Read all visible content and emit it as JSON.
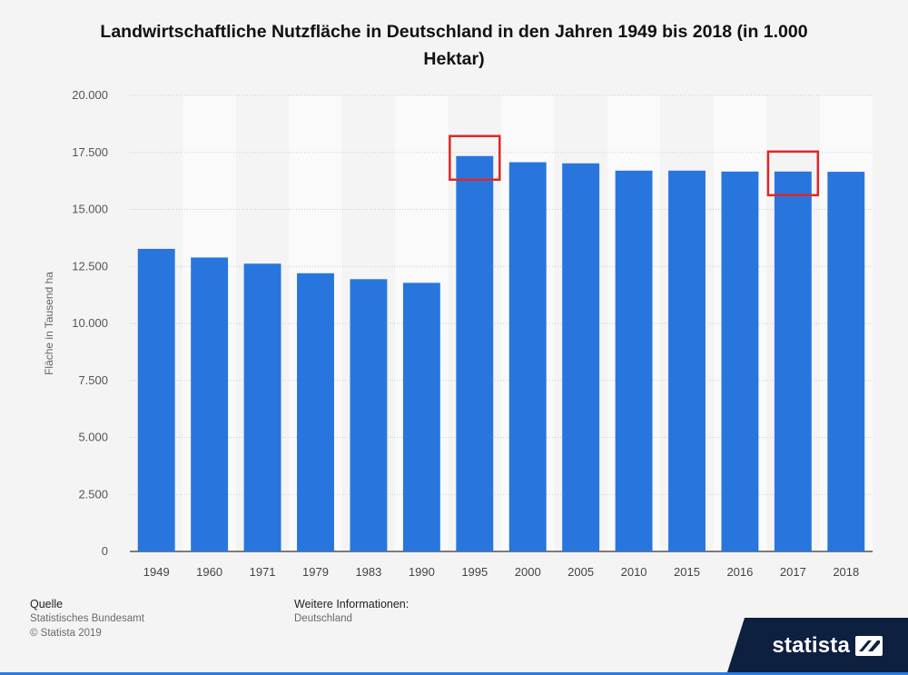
{
  "chart_data": {
    "type": "bar",
    "title": "Landwirtschaftliche Nutzfläche in Deutschland in den Jahren 1949 bis 2018 (in 1.000 Hektar)",
    "xlabel": "",
    "ylabel": "Fläche in Tausend ha",
    "ylim": [
      0,
      20000
    ],
    "yticks": [
      0,
      2500,
      5000,
      7500,
      10000,
      12500,
      15000,
      17500,
      20000
    ],
    "ytick_labels": [
      "0",
      "2.500",
      "5.000",
      "7.500",
      "10.000",
      "12.500",
      "15.000",
      "17.500",
      "20.000"
    ],
    "categories": [
      "1949",
      "1960",
      "1971",
      "1979",
      "1983",
      "1990",
      "1995",
      "2000",
      "2005",
      "2010",
      "2015",
      "2016",
      "2017",
      "2018"
    ],
    "values": [
      13270,
      12890,
      12620,
      12200,
      11940,
      11780,
      17340,
      17070,
      17020,
      16700,
      16700,
      16660,
      16660,
      16650
    ],
    "highlighted": [
      "1995",
      "2017"
    ],
    "bar_color": "#2876dd",
    "highlight_color": "#e02727",
    "grid": true
  },
  "footer": {
    "source_heading": "Quelle",
    "source_name": "Statistisches Bundesamt",
    "copyright": "© Statista 2019",
    "info_heading": "Weitere Informationen:",
    "info_value": "Deutschland"
  },
  "brand": {
    "name": "statista"
  },
  "colors": {
    "background": "#f4f4f4",
    "band": "#ebebeb",
    "brand_dark": "#0d2040",
    "accent": "#2a7ae2"
  }
}
